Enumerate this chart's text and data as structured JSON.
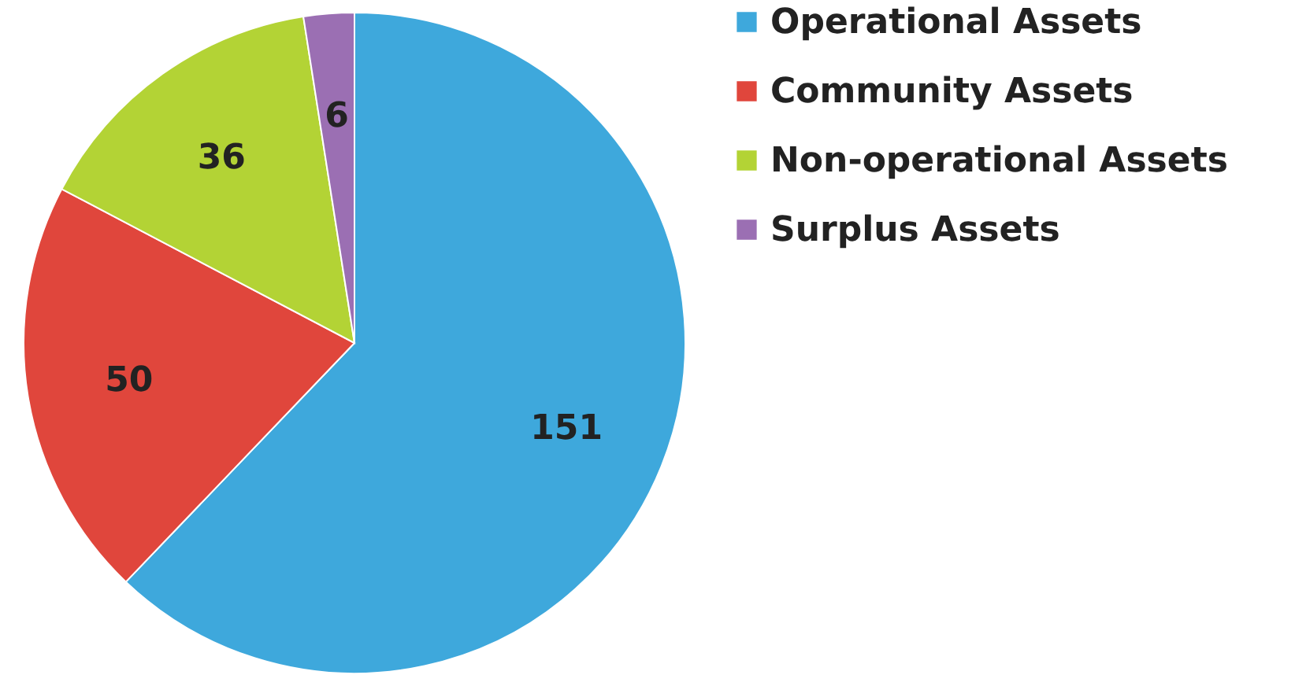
{
  "chart_data": {
    "type": "pie",
    "categories": [
      "Operational Assets",
      "Community Assets",
      "Non-operational Assets",
      "Surplus Assets"
    ],
    "values": [
      151,
      50,
      36,
      6
    ],
    "colors": [
      "#3ea8dc",
      "#e0463c",
      "#b3d335",
      "#9b6fb3"
    ],
    "data_labels": true,
    "legend": "right"
  }
}
